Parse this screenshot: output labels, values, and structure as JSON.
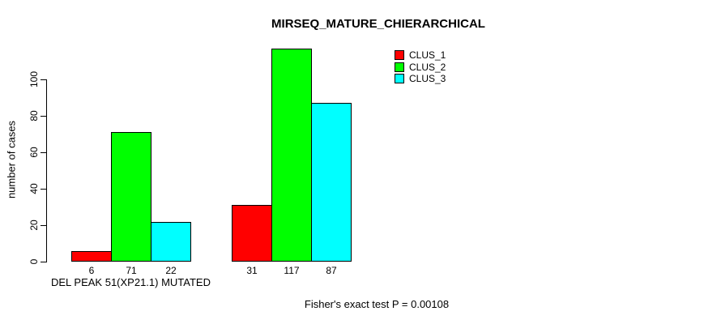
{
  "footer": "Fisher's exact test P = 0.00108",
  "chart_data": {
    "type": "bar",
    "title": "MIRSEQ_MATURE_CHIERARCHICAL",
    "xlabel": "",
    "ylabel": "number of cases",
    "ylim": [
      0,
      120
    ],
    "yticks": [
      0,
      20,
      40,
      60,
      80,
      100
    ],
    "categories": [
      "DEL PEAK 51(XP21.1) MUTATED",
      ""
    ],
    "series": [
      {
        "name": "CLUS_1",
        "color": "#FF0000",
        "values": [
          6,
          31
        ]
      },
      {
        "name": "CLUS_2",
        "color": "#00FF00",
        "values": [
          71,
          117
        ]
      },
      {
        "name": "CLUS_3",
        "color": "#00FFFF",
        "values": [
          22,
          87
        ]
      }
    ],
    "bar_value_labels": [
      [
        6,
        71,
        22
      ],
      [
        31,
        117,
        87
      ]
    ],
    "legend": [
      {
        "label": "CLUS_1",
        "color": "#FF0000"
      },
      {
        "label": "CLUS_2",
        "color": "#00FF00"
      },
      {
        "label": "CLUS_3",
        "color": "#00FFFF"
      }
    ],
    "legend_position": "top-right",
    "grid": false,
    "annotations": [
      "Fisher's exact test P = 0.00108"
    ]
  }
}
